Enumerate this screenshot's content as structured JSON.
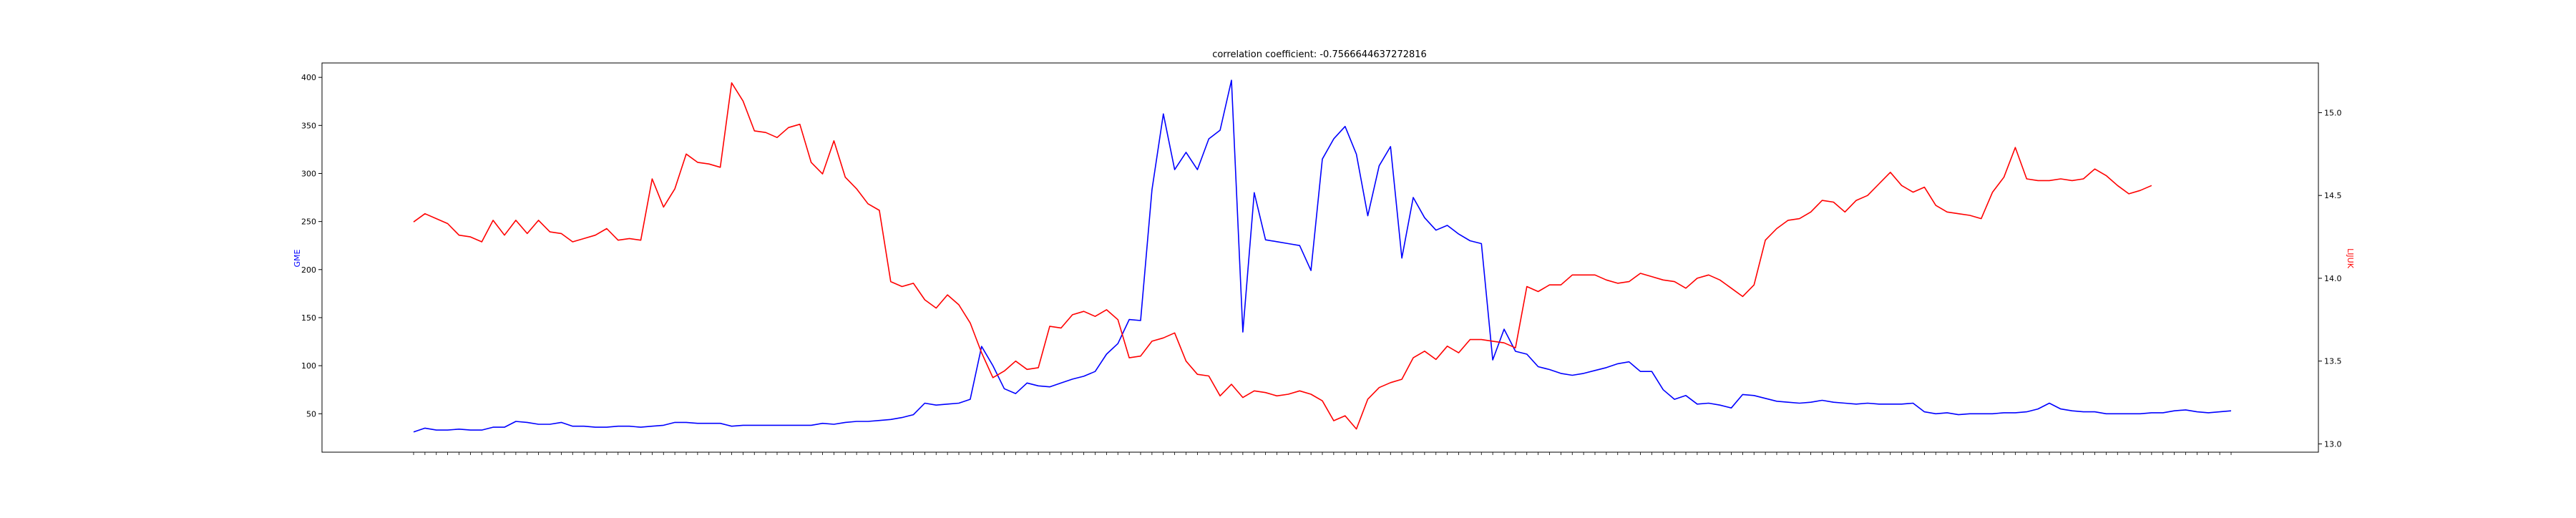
{
  "chart_data": {
    "type": "line",
    "title": "correlation coefficient: -0.7566644637272816",
    "xlabel": "",
    "x_ticks_note": "date/time tick labels (rotated, illegible at source resolution)",
    "y_left": {
      "label": "GME",
      "color": "#0000ff",
      "ylim": [
        10,
        415
      ],
      "ticks": [
        50,
        100,
        150,
        200,
        250,
        300,
        350,
        400
      ]
    },
    "y_right": {
      "label": "LIJUK",
      "color": "#ff0000",
      "ylim": [
        12.95,
        15.3
      ],
      "ticks": [
        13.0,
        13.5,
        14.0,
        14.5,
        15.0
      ]
    },
    "grid": false,
    "series": [
      {
        "name": "GME",
        "axis": "left",
        "color": "#0000ff",
        "values": [
          31,
          35,
          33,
          33,
          34,
          33,
          33,
          36,
          36,
          42,
          41,
          39,
          39,
          41,
          37,
          37,
          36,
          36,
          37,
          37,
          36,
          37,
          38,
          41,
          41,
          40,
          40,
          40,
          37,
          38,
          38,
          38,
          38,
          38,
          38,
          38,
          40,
          39,
          41,
          42,
          42,
          43,
          44,
          46,
          49,
          61,
          59,
          60,
          61,
          65,
          120,
          100,
          76,
          71,
          82,
          79,
          78,
          82,
          86,
          89,
          94,
          112,
          123,
          148,
          147,
          283,
          362,
          304,
          322,
          304,
          336,
          345,
          397,
          135,
          280,
          231,
          229,
          227,
          225,
          199,
          315,
          336,
          349,
          320,
          256,
          308,
          328,
          212,
          275,
          254,
          241,
          246,
          237,
          230,
          227,
          106,
          138,
          115,
          112,
          99,
          96,
          92,
          90,
          92,
          95,
          98,
          102,
          104,
          94,
          94,
          75,
          65,
          69,
          60,
          61,
          59,
          56,
          70,
          69,
          66,
          63,
          62,
          61,
          62,
          64,
          62,
          61,
          60,
          61,
          60,
          60,
          60,
          61,
          52,
          50,
          51,
          49,
          50,
          50,
          50,
          51,
          51,
          52,
          55,
          61,
          55,
          53,
          52,
          52,
          50,
          50,
          50,
          50,
          51,
          51,
          53,
          54,
          52,
          51,
          52,
          53
        ]
      },
      {
        "name": "LIJUK",
        "axis": "right",
        "color": "#ff0000",
        "values": [
          14.34,
          14.39,
          14.36,
          14.33,
          14.26,
          14.25,
          14.22,
          14.35,
          14.26,
          14.35,
          14.27,
          14.35,
          14.28,
          14.27,
          14.22,
          14.24,
          14.26,
          14.3,
          14.23,
          14.24,
          14.23,
          14.6,
          14.43,
          14.54,
          14.75,
          14.7,
          14.69,
          14.67,
          15.18,
          15.07,
          14.89,
          14.88,
          14.85,
          14.91,
          14.93,
          14.7,
          14.63,
          14.83,
          14.61,
          14.54,
          14.45,
          14.41,
          13.98,
          13.95,
          13.97,
          13.87,
          13.82,
          13.9,
          13.84,
          13.73,
          13.55,
          13.4,
          13.44,
          13.5,
          13.45,
          13.46,
          13.71,
          13.7,
          13.78,
          13.8,
          13.77,
          13.81,
          13.75,
          13.52,
          13.53,
          13.62,
          13.64,
          13.67,
          13.5,
          13.42,
          13.41,
          13.29,
          13.36,
          13.28,
          13.32,
          13.31,
          13.29,
          13.3,
          13.32,
          13.3,
          13.26,
          13.14,
          13.17,
          13.09,
          13.27,
          13.34,
          13.37,
          13.39,
          13.52,
          13.56,
          13.51,
          13.59,
          13.55,
          13.63,
          13.63,
          13.62,
          13.61,
          13.58,
          13.95,
          13.92,
          13.96,
          13.96,
          14.02,
          14.02,
          14.02,
          13.99,
          13.97,
          13.98,
          14.03,
          14.01,
          13.99,
          13.98,
          13.94,
          14.0,
          14.02,
          13.99,
          13.94,
          13.89,
          13.96,
          14.23,
          14.3,
          14.35,
          14.36,
          14.4,
          14.47,
          14.46,
          14.4,
          14.47,
          14.5,
          14.57,
          14.64,
          14.56,
          14.52,
          14.55,
          14.44,
          14.4,
          14.39,
          14.38,
          14.36,
          14.52,
          14.61,
          14.79,
          14.6,
          14.59,
          14.59,
          14.6,
          14.59,
          14.6,
          14.66,
          14.62,
          14.56,
          14.51,
          14.53,
          14.56
        ]
      }
    ]
  }
}
